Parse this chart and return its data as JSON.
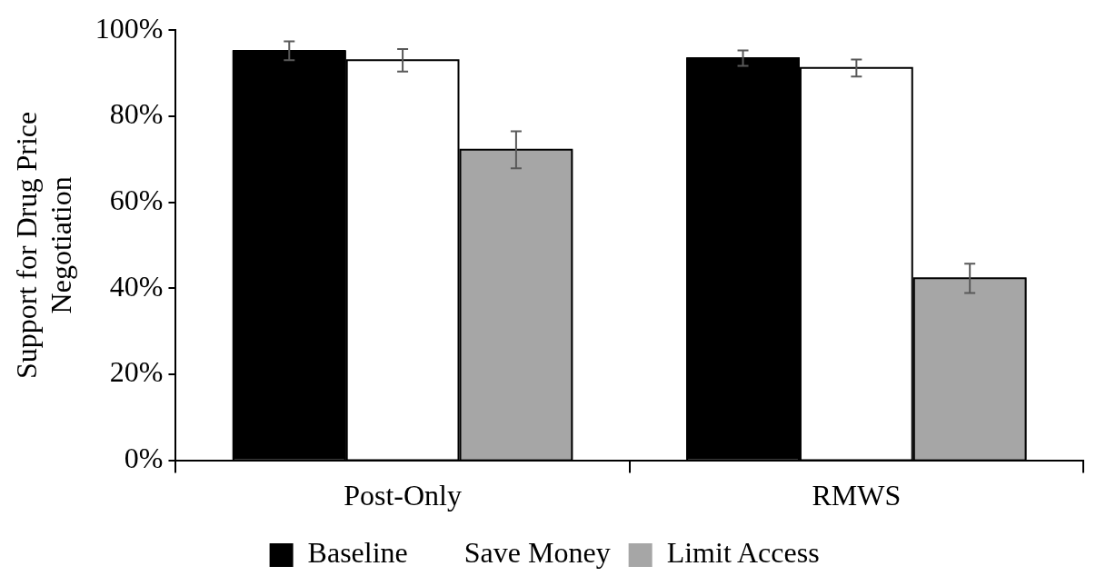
{
  "chart_data": {
    "type": "bar",
    "ylabel": "Support for Drug Price Negotiation",
    "categories": [
      "Post-Only",
      "RMWS"
    ],
    "series": [
      {
        "name": "Baseline",
        "color": "#000000",
        "values": [
          95.2,
          93.5
        ],
        "errors": [
          2.2,
          1.8
        ]
      },
      {
        "name": "Save Money",
        "color": "#ffffff",
        "values": [
          93.0,
          91.2
        ],
        "errors": [
          2.6,
          2.0
        ]
      },
      {
        "name": "Limit Access",
        "color": "#a6a6a6",
        "values": [
          72.2,
          42.3
        ],
        "errors": [
          4.3,
          3.4
        ]
      }
    ],
    "ylim": [
      0,
      100
    ],
    "yticks": [
      {
        "value": 0,
        "label": "0%"
      },
      {
        "value": 20,
        "label": "20%"
      },
      {
        "value": 40,
        "label": "40%"
      },
      {
        "value": 60,
        "label": "60%"
      },
      {
        "value": 80,
        "label": "80%"
      },
      {
        "value": 100,
        "label": "100%"
      }
    ],
    "grid": false,
    "legend": "bottom"
  }
}
